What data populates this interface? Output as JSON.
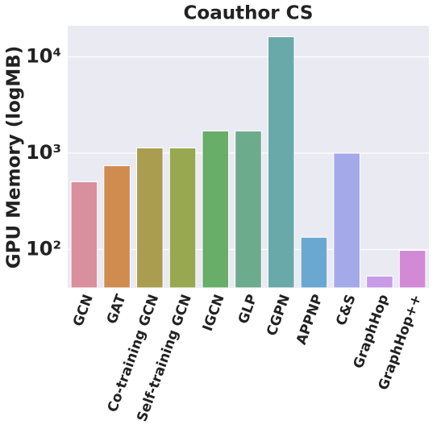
{
  "chart_data": {
    "type": "bar",
    "title": "Coauthor CS",
    "y_label": "GPU Memory (logMB)",
    "categories": [
      "GCN",
      "GAT",
      "Co-training GCN",
      "Self-training GCN",
      "IGCN",
      "GLP",
      "CGPN",
      "APPNP",
      "C&S",
      "GraphHop",
      "GraphHop++"
    ],
    "values": [
      505,
      741,
      1133,
      1133,
      1700,
      1700,
      16170,
      134,
      1000,
      53,
      98
    ],
    "colors": [
      "#d88f9e",
      "#d08b4f",
      "#ab9d4f",
      "#98a851",
      "#68ad68",
      "#6cab8c",
      "#6aa9a9",
      "#6aa8d2",
      "#a4a9e9",
      "#c89be6",
      "#d38ad6"
    ],
    "y_scale": "log",
    "ylim": [
      40,
      21000
    ],
    "yticks": [
      {
        "value": 100,
        "label": "10²"
      },
      {
        "value": 1000,
        "label": "10³"
      },
      {
        "value": 10000,
        "label": "10⁴"
      }
    ],
    "grid": true
  }
}
